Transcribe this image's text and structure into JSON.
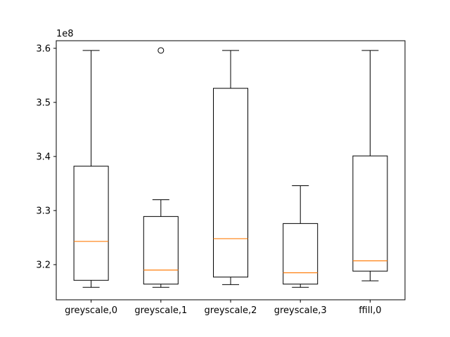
{
  "chart_data": {
    "type": "box",
    "title": "",
    "xlabel": "",
    "ylabel": "",
    "y_offset_label": "1e8",
    "ylim": [
      3.135,
      3.614
    ],
    "yticks": [
      {
        "value": 3.2,
        "label": "3.2"
      },
      {
        "value": 3.3,
        "label": "3.3"
      },
      {
        "value": 3.4,
        "label": "3.4"
      },
      {
        "value": 3.5,
        "label": "3.5"
      },
      {
        "value": 3.6,
        "label": "3.6"
      }
    ],
    "categories": [
      "greyscale,0",
      "greyscale,1",
      "greyscale,2",
      "greyscale,3",
      "ffill,0"
    ],
    "boxes": [
      {
        "whisker_low": 3.158,
        "q1": 3.171,
        "median": 3.243,
        "q3": 3.382,
        "whisker_high": 3.596,
        "outliers": []
      },
      {
        "whisker_low": 3.158,
        "q1": 3.164,
        "median": 3.19,
        "q3": 3.289,
        "whisker_high": 3.32,
        "outliers": [
          3.596
        ]
      },
      {
        "whisker_low": 3.163,
        "q1": 3.177,
        "median": 3.248,
        "q3": 3.526,
        "whisker_high": 3.596,
        "outliers": []
      },
      {
        "whisker_low": 3.158,
        "q1": 3.164,
        "median": 3.185,
        "q3": 3.276,
        "whisker_high": 3.346,
        "outliers": []
      },
      {
        "whisker_low": 3.17,
        "q1": 3.188,
        "median": 3.207,
        "q3": 3.401,
        "whisker_high": 3.596,
        "outliers": []
      }
    ],
    "colors": {
      "box": "#000000",
      "median": "#ff7f0e",
      "outlier": "#000000"
    },
    "grid": false,
    "legend": "none"
  }
}
